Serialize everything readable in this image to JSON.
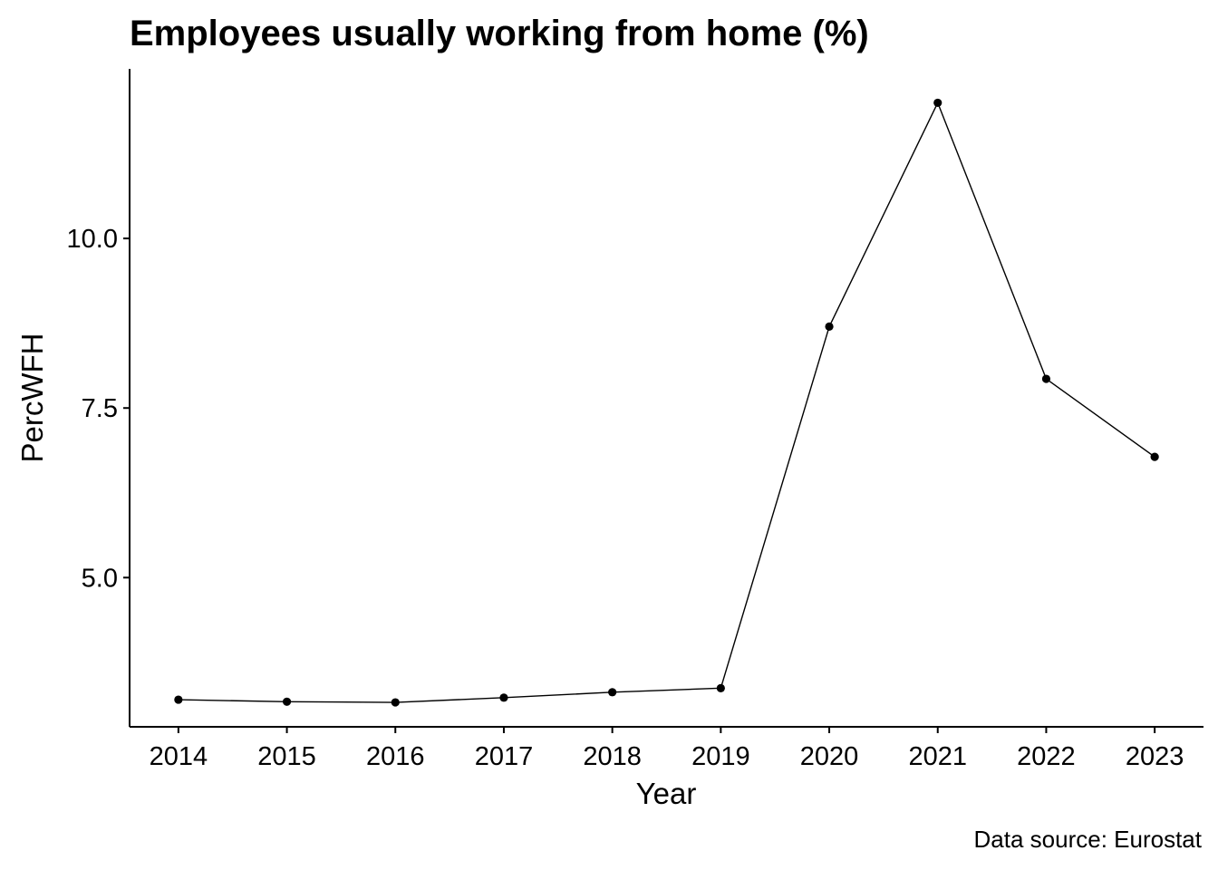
{
  "chart_data": {
    "type": "line",
    "title": "Employees usually working from home (%)",
    "xlabel": "Year",
    "ylabel": "PercWFH",
    "caption": "Data source: Eurostat",
    "x": [
      2014,
      2015,
      2016,
      2017,
      2018,
      2019,
      2020,
      2021,
      2022,
      2023
    ],
    "series": [
      {
        "name": "PercWFH",
        "values": [
          3.2,
          3.17,
          3.16,
          3.23,
          3.31,
          3.37,
          8.7,
          12.0,
          7.93,
          6.78
        ]
      }
    ],
    "xlim": [
      2013.55,
      2023.45
    ],
    "ylim": [
      2.8,
      12.5
    ],
    "y_ticks": [
      5.0,
      7.5,
      10.0
    ],
    "y_tick_labels": [
      "5.0",
      "7.5",
      "10.0"
    ],
    "x_tick_labels": [
      "2014",
      "2015",
      "2016",
      "2017",
      "2018",
      "2019",
      "2020",
      "2021",
      "2022",
      "2023"
    ],
    "grid": false,
    "legend": "none",
    "colors": {
      "line": "#000000",
      "points": "#000000",
      "background": "#ffffff"
    }
  }
}
